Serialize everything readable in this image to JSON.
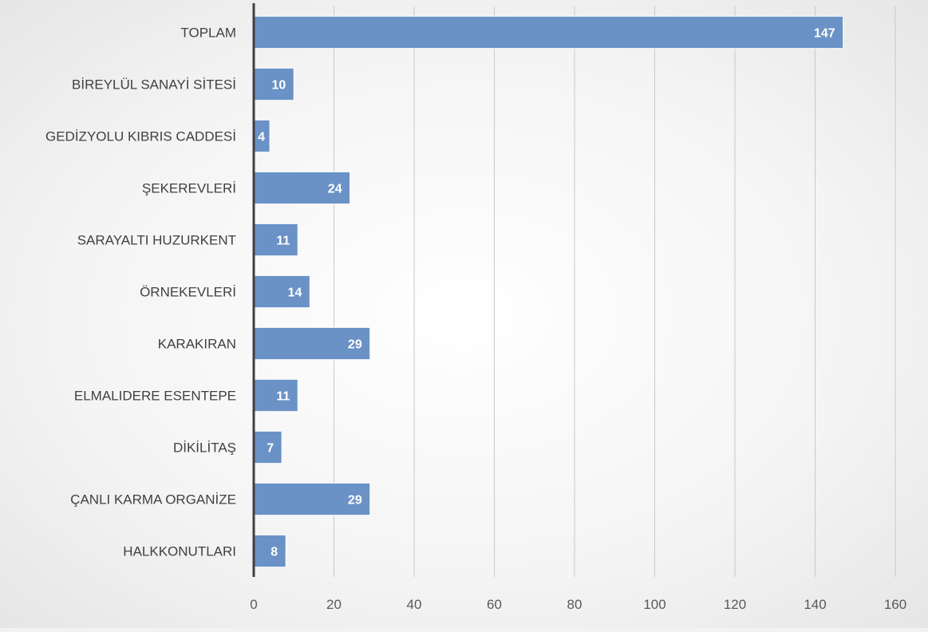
{
  "chart_data": {
    "type": "bar",
    "orientation": "horizontal",
    "categories": [
      "TOPLAM",
      "BİREYLÜL SANAYİ SİTESİ",
      "GEDİZYOLU KIBRIS CADDESİ",
      "ŞEKEREVLERİ",
      "SARAYALTI HUZURKENT",
      "ÖRNEKEVLERİ",
      "KARAKIRAN",
      "ELMALIDERE ESENTEPE",
      "DİKİLİTAŞ",
      "ÇANLI KARMA ORGANİZE",
      "HALKKONUTLARI"
    ],
    "values": [
      147,
      10,
      4,
      24,
      11,
      14,
      29,
      11,
      7,
      29,
      8
    ],
    "xlim": [
      0,
      160
    ],
    "xticks": [
      0,
      20,
      40,
      60,
      80,
      100,
      120,
      140,
      160
    ],
    "title": "",
    "xlabel": "",
    "ylabel": "",
    "grid": "vertical",
    "legend": "none",
    "bar_color": "#6a92c6",
    "bar_border_color": "#ffffff",
    "axis_color": "#404040",
    "grid_color": "#c8c8c8"
  }
}
